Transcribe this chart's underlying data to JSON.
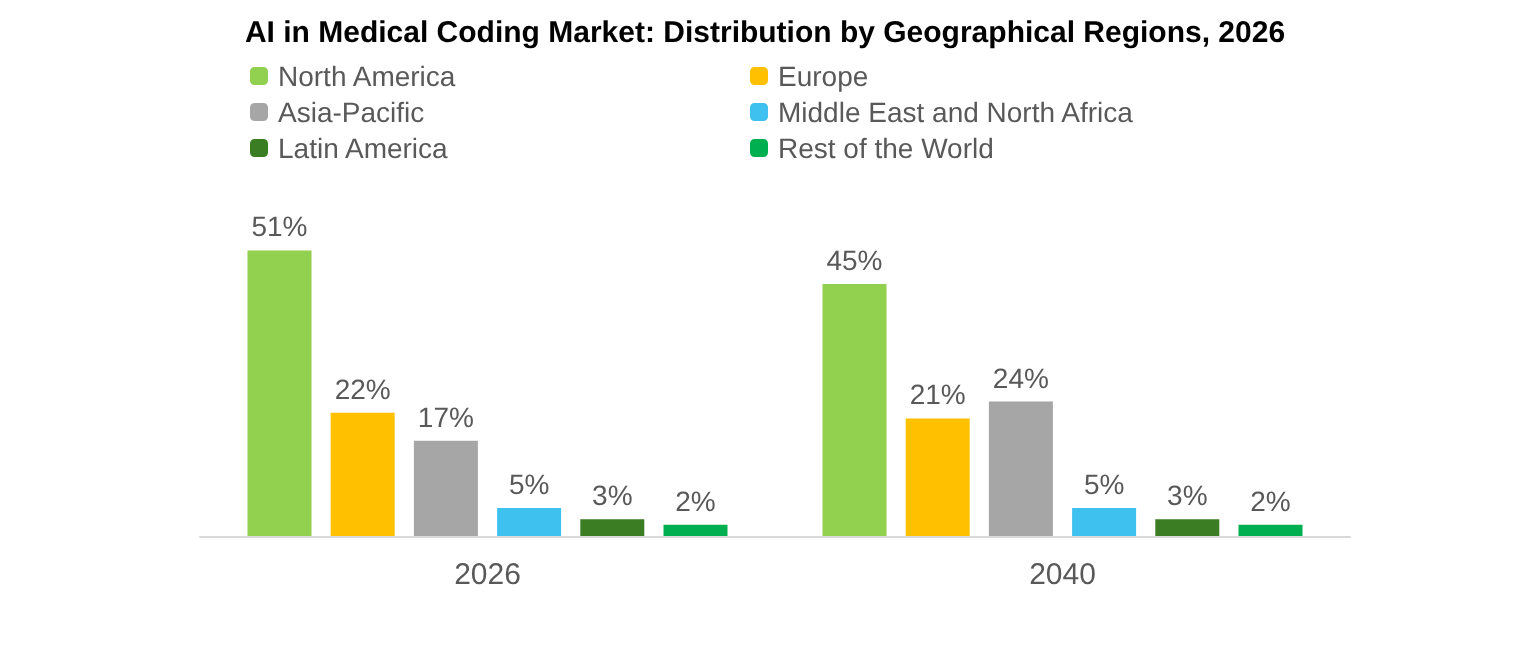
{
  "chart_data": {
    "type": "bar",
    "title": "AI in Medical Coding Market: Distribution by Geographical Regions, 2026",
    "categories": [
      "2026",
      "2040"
    ],
    "series": [
      {
        "name": "North America",
        "color": "#92d050",
        "values": [
          51,
          45
        ],
        "value_labels": [
          "51%",
          "45%"
        ]
      },
      {
        "name": "Europe",
        "color": "#ffc000",
        "values": [
          22,
          21
        ],
        "value_labels": [
          "22%",
          "21%"
        ]
      },
      {
        "name": "Asia-Pacific",
        "color": "#a6a6a6",
        "values": [
          17,
          24
        ],
        "value_labels": [
          "17%",
          "24%"
        ]
      },
      {
        "name": "Middle East and North Africa",
        "color": "#3fc1f0",
        "values": [
          5,
          5
        ],
        "value_labels": [
          "5%",
          "5%"
        ]
      },
      {
        "name": "Latin America",
        "color": "#3a7d22",
        "values": [
          3,
          3
        ],
        "value_labels": [
          "3%",
          "3%"
        ]
      },
      {
        "name": "Rest of the World",
        "color": "#00b050",
        "values": [
          2,
          2
        ],
        "value_labels": [
          "2%",
          "2%"
        ]
      }
    ],
    "legend": "top"
  }
}
